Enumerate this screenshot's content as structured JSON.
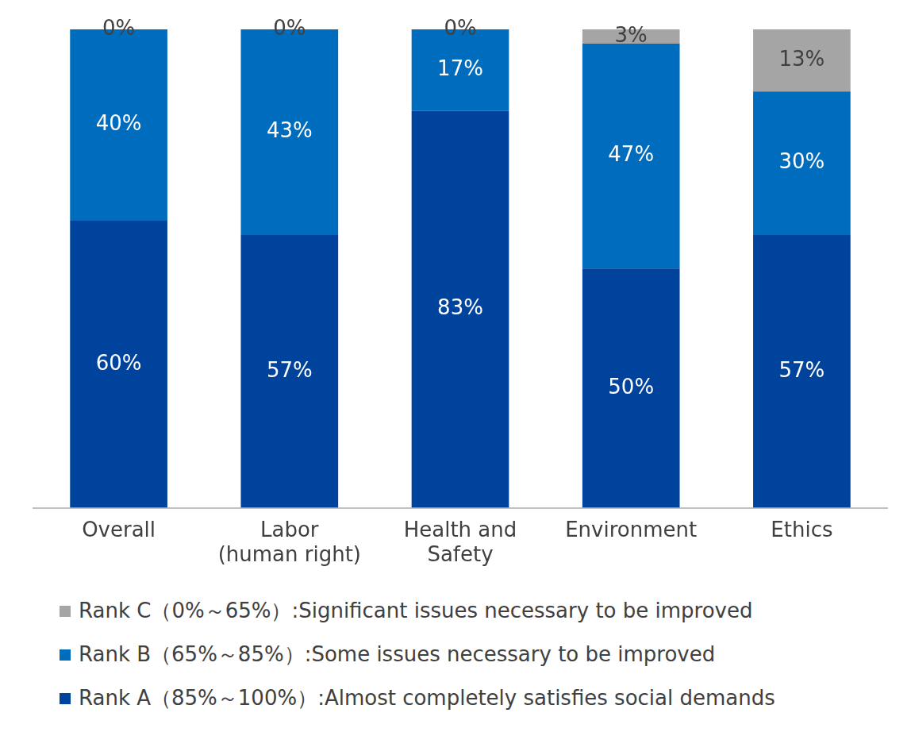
{
  "chart_data": {
    "type": "bar",
    "stacked": true,
    "data_labels": true,
    "tick_labels": "x",
    "grid": false,
    "legend": "bottom",
    "categories": [
      "Overall",
      [
        "Labor",
        "(human right)"
      ],
      [
        "Health and",
        "Safety"
      ],
      "Environment",
      "Ethics"
    ],
    "ylim": [
      0,
      100
    ],
    "series": [
      {
        "name": "Rank A（85%～100%）:Almost completely satisfies social demands",
        "color": "#00439C",
        "values": [
          60,
          57,
          83,
          50,
          57
        ],
        "value_labels": [
          "60%",
          "57%",
          "83%",
          "50%",
          "57%"
        ]
      },
      {
        "name": "Rank B（65%～85%）:Some issues necessary to be improved",
        "color": "#006CBD",
        "values": [
          40,
          43,
          17,
          47,
          30
        ],
        "value_labels": [
          "40%",
          "43%",
          "17%",
          "47%",
          "30%"
        ]
      },
      {
        "name": "Rank C（0%～65%）:Significant issues necessary to be improved",
        "color": "#A5A5A5",
        "values": [
          0,
          0,
          0,
          3,
          13
        ],
        "value_labels": [
          "0%",
          "0%",
          "0%",
          "3%",
          "13%"
        ]
      }
    ]
  }
}
